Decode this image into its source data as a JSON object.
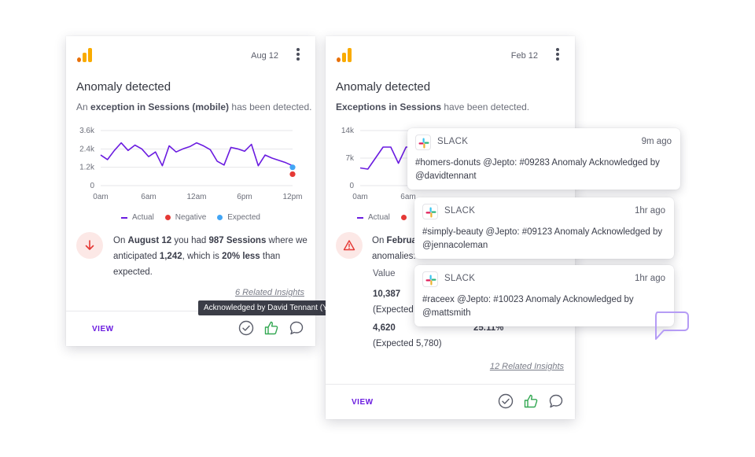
{
  "card1": {
    "date": "Aug 12",
    "title": "Anomaly detected",
    "subtitle_pre": "An ",
    "subtitle_bold": "exception in Sessions (mobile)",
    "subtitle_post": " has been detected.",
    "body": {
      "p1": "On ",
      "b1": "August 12",
      "p2": " you had ",
      "b2": "987 Sessions",
      "p3": " where we anticipated ",
      "b3": "1,242",
      "p4": ", which is ",
      "b4": "20% less",
      "p5": " than expected."
    },
    "related": "6 Related Insights",
    "view": "VIEW",
    "tooltip": "Acknowledged by David Tennant (You)"
  },
  "card2": {
    "date": "Feb 12",
    "title": "Anomaly detected",
    "subtitle_bold": "Exceptions in Sessions",
    "subtitle_post": " have been detected.",
    "body_line1_pre": "On ",
    "body_line1_bold": "Februa",
    "body_line2": "anomalies:",
    "table_header": "Value",
    "rows": [
      {
        "value": "10,387",
        "expected": "(Expected"
      },
      {
        "value": "4,620",
        "expected": "(Expected 5,780)",
        "pct": "25.11%"
      }
    ],
    "related": "12 Related Insights",
    "view": "VIEW"
  },
  "chart_data": [
    {
      "type": "line",
      "x_ticks": [
        "0am",
        "6am",
        "12am",
        "6pm",
        "12pm"
      ],
      "y_ticks": [
        "3.6k",
        "2.4k",
        "1.2k",
        "0"
      ],
      "ylim": [
        0,
        3600
      ],
      "legend": [
        "Actual",
        "Negative",
        "Expected"
      ],
      "legend_placement": "bottom",
      "series": [
        {
          "name": "Actual",
          "color": "#6a1be0",
          "values": [
            2000,
            1700,
            2300,
            2800,
            2300,
            2650,
            2400,
            1900,
            2200,
            1300,
            2600,
            2200,
            2400,
            2550,
            2800,
            2600,
            2350,
            1600,
            1350,
            2500,
            2400,
            2250,
            2700,
            1300,
            2000,
            1800,
            1650,
            1500,
            1300
          ]
        },
        {
          "name": "Negative",
          "color": "#e53935",
          "values": [
            {
              "x": 28,
              "y": 750
            }
          ]
        },
        {
          "name": "Expected",
          "color": "#42a5f5",
          "values": [
            {
              "x": 28,
              "y": 1200
            }
          ]
        }
      ]
    },
    {
      "type": "line",
      "x_ticks": [
        "0am",
        "6am"
      ],
      "y_ticks": [
        "14k",
        "7k",
        "0"
      ],
      "ylim": [
        0,
        14000
      ],
      "legend": [
        "Actual"
      ],
      "legend_placement": "bottom",
      "series": [
        {
          "name": "Actual",
          "color": "#6a1be0",
          "values": [
            4500,
            4200,
            7000,
            9800,
            9800,
            5700,
            9800,
            9800
          ]
        }
      ]
    }
  ],
  "slack": [
    {
      "name": "SLACK",
      "time": "9m ago",
      "message": "#homers-donuts @Jepto: #09283 Anomaly Acknowledged by @davidtennant"
    },
    {
      "name": "SLACK",
      "time": "1hr ago",
      "message": "#simply-beauty @Jepto: #09123 Anomaly Acknowledged by @jennacoleman"
    },
    {
      "name": "SLACK",
      "time": "1hr ago",
      "message": "#raceex @Jepto: #10023 Anomaly Acknowledged by @mattsmith"
    }
  ],
  "colors": {
    "accent": "#6a1be0",
    "negative": "#e53935",
    "expected": "#42a5f5",
    "thumbs": "#34a853"
  },
  "icons": [
    "analytics-logo-icon",
    "kebab-menu-icon",
    "arrow-down-icon",
    "warning-icon",
    "check-circle-icon",
    "thumbs-up-icon",
    "comment-icon",
    "slack-icon",
    "chat-bubble-icon"
  ]
}
